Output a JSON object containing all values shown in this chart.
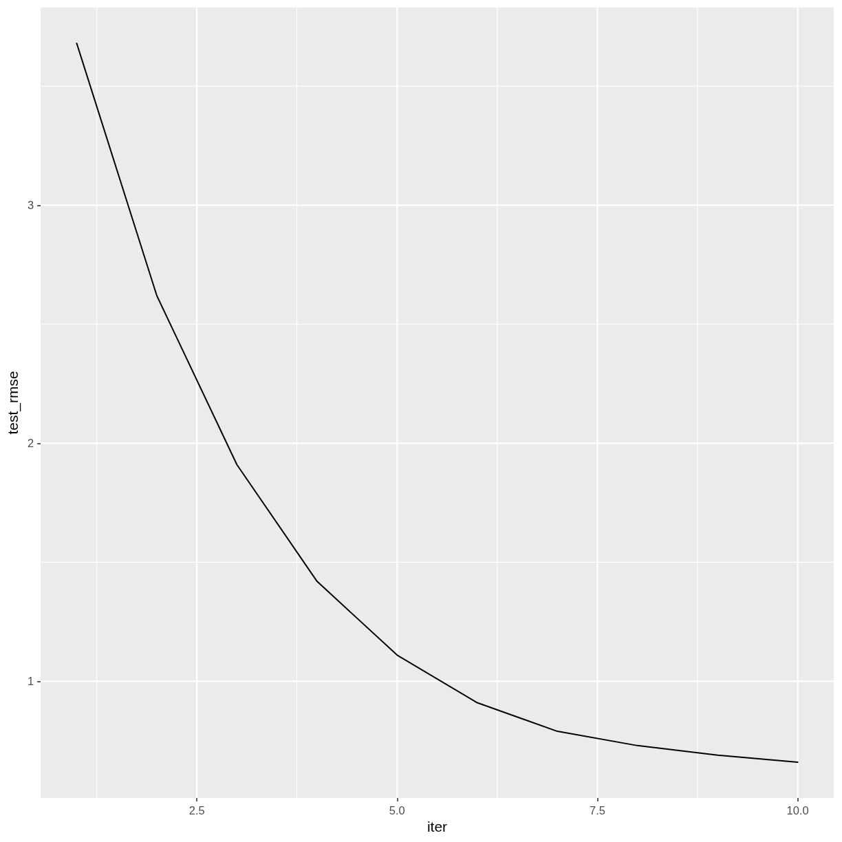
{
  "chart_data": {
    "type": "line",
    "xlabel": "iter",
    "ylabel": "test_rmse",
    "x": [
      1,
      2,
      3,
      4,
      5,
      6,
      7,
      8,
      9,
      10
    ],
    "series": [
      {
        "color": "#000000",
        "values": [
          3.68,
          2.62,
          1.91,
          1.42,
          1.11,
          0.91,
          0.79,
          0.73,
          0.69,
          0.66
        ]
      }
    ],
    "xlim": [
      0.55,
      10.45
    ],
    "ylim": [
      0.51,
      3.83
    ],
    "xticks": [
      {
        "value": 1.25,
        "label": null
      },
      2.5,
      {
        "value": 3.75,
        "label": null
      },
      {
        "value": 5,
        "label": "5.0"
      },
      {
        "value": 6.25,
        "label": null
      },
      7.5,
      {
        "value": 8.75,
        "label": null
      },
      {
        "value": 10,
        "label": "10.0"
      }
    ],
    "yticks": [
      1,
      {
        "value": 1.5,
        "label": null
      },
      2,
      {
        "value": 2.5,
        "label": null
      },
      3,
      {
        "value": 3.5,
        "label": null
      }
    ],
    "grid": true,
    "marker": "none",
    "line_style": "solid"
  }
}
